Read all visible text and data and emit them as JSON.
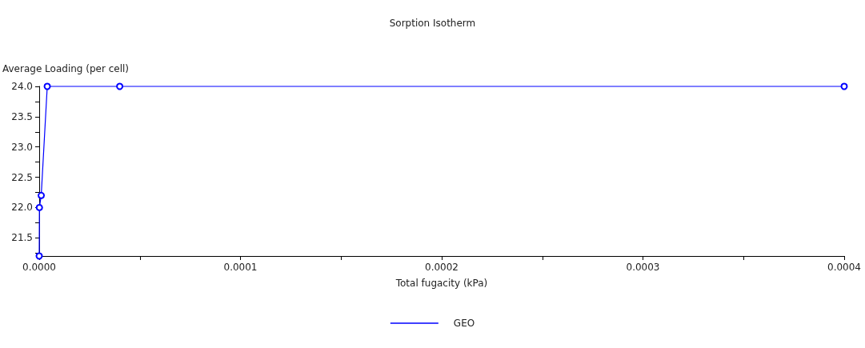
{
  "chart_data": {
    "type": "line",
    "title": "Sorption Isotherm",
    "xlabel": "Total fugacity (kPa)",
    "ylabel": "Average Loading (per cell)",
    "x": [
      0,
      1e-07,
      1e-06,
      4e-06,
      4e-05,
      0.0004
    ],
    "series": [
      {
        "name": "GEO",
        "color": "#0000ff",
        "values": [
          21.2,
          22.0,
          22.2,
          24.0,
          24.0,
          24.0
        ]
      }
    ],
    "xlim": [
      0,
      0.0004
    ],
    "xticks": [
      {
        "value": 0,
        "label": "0.0000"
      },
      {
        "value": 5e-05,
        "label": null
      },
      {
        "value": 0.0001,
        "label": "0.0001"
      },
      {
        "value": 0.00015,
        "label": null
      },
      {
        "value": 0.0002,
        "label": "0.0002"
      },
      {
        "value": 0.00025,
        "label": null
      },
      {
        "value": 0.0003,
        "label": "0.0003"
      },
      {
        "value": 0.00035,
        "label": null
      },
      {
        "value": 0.0004,
        "label": "0.0004"
      }
    ],
    "ylim": [
      21.2,
      24.0
    ],
    "yticks": [
      {
        "value": 21.25,
        "label": null
      },
      {
        "value": 21.5,
        "label": "21.5"
      },
      {
        "value": 21.75,
        "label": null
      },
      {
        "value": 22,
        "label": "22.0"
      },
      {
        "value": 22.25,
        "label": null
      },
      {
        "value": 22.5,
        "label": "22.5"
      },
      {
        "value": 22.75,
        "label": null
      },
      {
        "value": 23,
        "label": "23.0"
      },
      {
        "value": 23.25,
        "label": null
      },
      {
        "value": 23.5,
        "label": "23.5"
      },
      {
        "value": 23.75,
        "label": null
      },
      {
        "value": 24,
        "label": "24.0"
      }
    ],
    "grid": false,
    "legend": "bottom",
    "marker": "circle",
    "line_style": "solid"
  }
}
